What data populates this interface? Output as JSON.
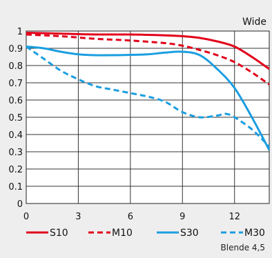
{
  "chart_data": {
    "type": "line",
    "title": "Wide",
    "note": "Blende 4,5",
    "xlabel": "",
    "ylabel": "",
    "xlim": [
      0,
      14
    ],
    "ylim": [
      0,
      1
    ],
    "x_ticks": [
      "0",
      "3",
      "6",
      "9",
      "12"
    ],
    "x_tick_values": [
      0,
      3,
      6,
      9,
      12
    ],
    "y_ticks": [
      "0",
      "0.1",
      "0.2",
      "0.3",
      "0.4",
      "0.5",
      "0.6",
      "0.7",
      "0.8",
      "0.9",
      "1"
    ],
    "y_tick_values": [
      0,
      0.1,
      0.2,
      0.3,
      0.4,
      0.5,
      0.6,
      0.7,
      0.8,
      0.9,
      1.0
    ],
    "grid": true,
    "legend_position": "bottom",
    "series": [
      {
        "name": "S10",
        "color": "#e2001a",
        "dash": "solid",
        "points": [
          [
            0,
            0.99
          ],
          [
            2,
            0.985
          ],
          [
            4,
            0.98
          ],
          [
            6,
            0.98
          ],
          [
            8,
            0.975
          ],
          [
            9,
            0.97
          ],
          [
            10,
            0.96
          ],
          [
            11,
            0.94
          ],
          [
            12,
            0.91
          ],
          [
            13,
            0.85
          ],
          [
            14,
            0.78
          ]
        ]
      },
      {
        "name": "M10",
        "color": "#e2001a",
        "dash": "dashed",
        "points": [
          [
            0,
            0.98
          ],
          [
            2,
            0.97
          ],
          [
            4,
            0.955
          ],
          [
            6,
            0.945
          ],
          [
            8,
            0.93
          ],
          [
            9,
            0.915
          ],
          [
            10,
            0.89
          ],
          [
            11,
            0.86
          ],
          [
            12,
            0.82
          ],
          [
            13,
            0.76
          ],
          [
            14,
            0.69
          ]
        ]
      },
      {
        "name": "S30",
        "color": "#1a9ee0",
        "dash": "solid",
        "points": [
          [
            0,
            0.91
          ],
          [
            1,
            0.9
          ],
          [
            2,
            0.88
          ],
          [
            3,
            0.865
          ],
          [
            4,
            0.86
          ],
          [
            5,
            0.86
          ],
          [
            6,
            0.862
          ],
          [
            7,
            0.865
          ],
          [
            8,
            0.875
          ],
          [
            9,
            0.88
          ],
          [
            10,
            0.86
          ],
          [
            11,
            0.78
          ],
          [
            12,
            0.67
          ],
          [
            13,
            0.5
          ],
          [
            14,
            0.31
          ]
        ]
      },
      {
        "name": "M30",
        "color": "#1a9ee0",
        "dash": "dashed",
        "points": [
          [
            0,
            0.91
          ],
          [
            1,
            0.84
          ],
          [
            2,
            0.77
          ],
          [
            3,
            0.72
          ],
          [
            4,
            0.68
          ],
          [
            5,
            0.66
          ],
          [
            6,
            0.64
          ],
          [
            7,
            0.62
          ],
          [
            8,
            0.59
          ],
          [
            9,
            0.53
          ],
          [
            10,
            0.5
          ],
          [
            11,
            0.51
          ],
          [
            11.5,
            0.52
          ],
          [
            12,
            0.5
          ],
          [
            13,
            0.43
          ],
          [
            14,
            0.33
          ]
        ]
      }
    ]
  }
}
